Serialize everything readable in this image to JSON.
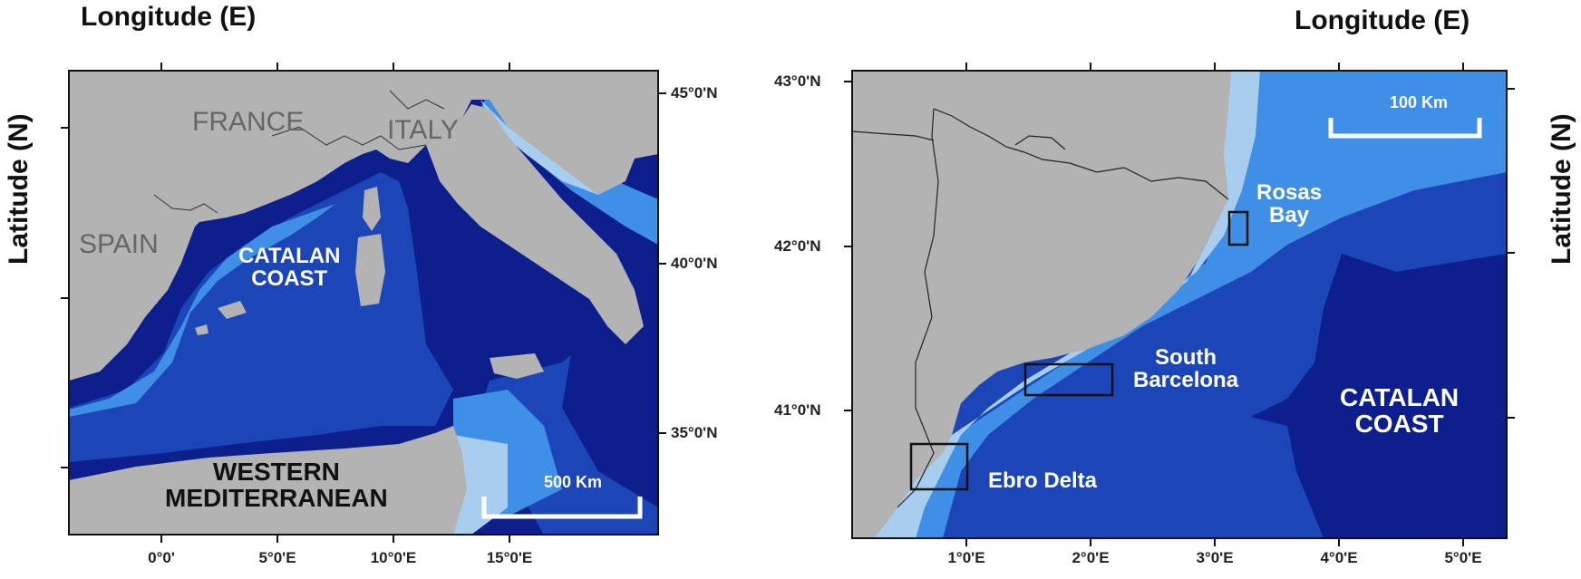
{
  "left_map": {
    "axis_title_x": "Longitude (E)",
    "axis_title_y": "Latitude (N)",
    "x_ticks": [
      "0°0'",
      "5°0'E",
      "10°0'E",
      "15°0'E"
    ],
    "y_ticks": [
      "45°0'N",
      "40°0'N",
      "35°0'N"
    ],
    "labels": {
      "france": "FRANCE",
      "italy": "ITALY",
      "spain": "SPAIN",
      "catalan_coast_line1": "CATALAN",
      "catalan_coast_line2": "COAST",
      "western_med_line1": "WESTERN",
      "western_med_line2": "MEDITERRANEAN"
    },
    "scale_bar": "500 Km"
  },
  "right_map": {
    "axis_title_x": "Longitude (E)",
    "axis_title_y": "Latitude (N)",
    "x_ticks": [
      "1°0'E",
      "2°0'E",
      "3°0'E",
      "4°0'E",
      "5°0'E"
    ],
    "y_ticks": [
      "43°0'N",
      "42°0'N",
      "41°0'N"
    ],
    "labels": {
      "rosas_line1": "Rosas",
      "rosas_line2": "Bay",
      "south_bcn_line1": "South",
      "south_bcn_line2": "Barcelona",
      "ebro_delta": "Ebro Delta",
      "catalan_coast_line1": "CATALAN",
      "catalan_coast_line2": "COAST"
    },
    "scale_bar": "100 Km"
  },
  "colors": {
    "land": "#b3b3b3",
    "shelf": "#a9cdef",
    "slope": "#3f8fe6",
    "deep": "#1c46b8",
    "abyss": "#0c1f8c",
    "border": "#333333"
  }
}
